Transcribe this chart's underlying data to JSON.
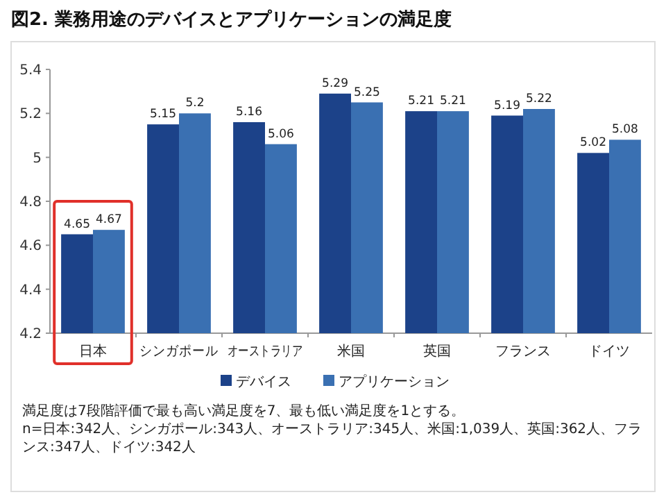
{
  "chart_data": {
    "type": "bar",
    "title": "図2. 業務用途のデバイスとアプリケーションの満足度",
    "categories": [
      "日本",
      "シンガポール",
      "オーストラリア",
      "米国",
      "英国",
      "フランス",
      "ドイツ"
    ],
    "series": [
      {
        "name": "デバイス",
        "color": "#1c4289",
        "values": [
          4.65,
          5.15,
          5.16,
          5.29,
          5.21,
          5.19,
          5.02
        ]
      },
      {
        "name": "アプリケーション",
        "color": "#3a70b2",
        "values": [
          4.67,
          5.2,
          5.06,
          5.25,
          5.21,
          5.22,
          5.08
        ]
      }
    ],
    "ylim": [
      4.2,
      5.4
    ],
    "yticks": [
      4.2,
      4.4,
      4.6,
      4.8,
      5,
      5.2,
      5.4
    ],
    "data_labels": true,
    "legend": "bottom",
    "grid": false,
    "annotations": [
      "満足度は7段階評価で最も高い満足度を7、最も低い満足度を1とする。",
      "n=日本:342人、シンガポール:343人、オーストラリア:345人、米国:1,039人、英国:362人、フランス:347人、ドイツ:342人"
    ]
  }
}
